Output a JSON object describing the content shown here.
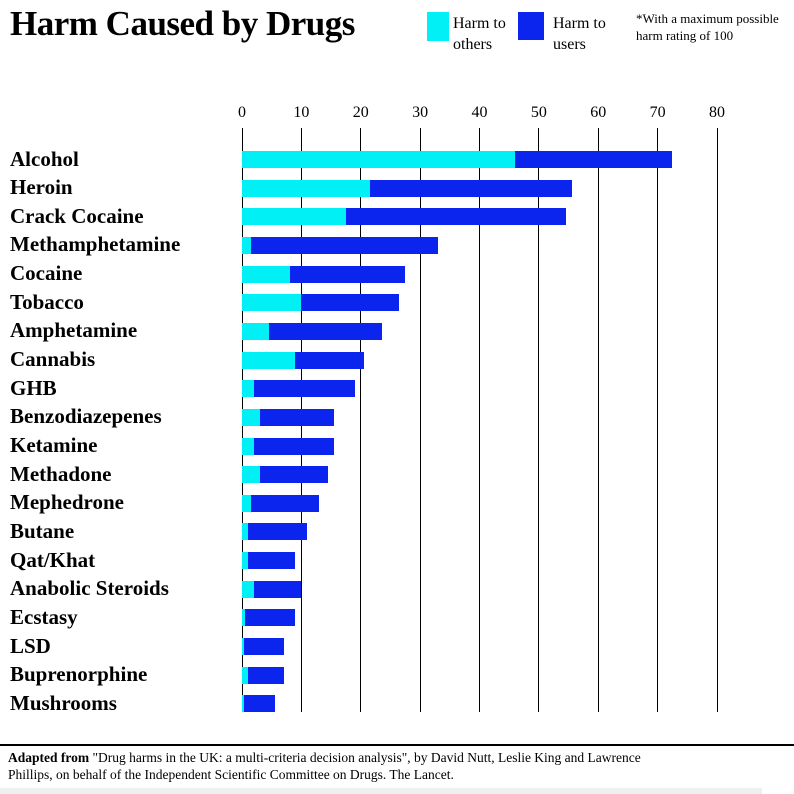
{
  "title": "Harm Caused by Drugs",
  "legend": {
    "others_label": "Harm to others",
    "users_label": "Harm to users",
    "note": "*With a maximum possible harm rating of 100"
  },
  "colors": {
    "harm_to_others": "#00f0f6",
    "harm_to_users": "#0b24ee",
    "grid": "#000000",
    "text": "#000000",
    "background": "#ffffff"
  },
  "chart_data": {
    "type": "bar",
    "orientation": "horizontal",
    "stacked": true,
    "title": "Harm Caused by Drugs",
    "note": "*With a maximum possible harm rating of 100",
    "xlabel": "",
    "ylabel": "",
    "xlim": [
      0,
      80
    ],
    "x_ticks": [
      0,
      10,
      20,
      30,
      40,
      50,
      60,
      70,
      80
    ],
    "grid": "vertical",
    "legend_position": "top",
    "categories": [
      "Alcohol",
      "Heroin",
      "Crack Cocaine",
      "Methamphetamine",
      "Cocaine",
      "Tobacco",
      "Amphetamine",
      "Cannabis",
      "GHB",
      "Benzodiazepenes",
      "Ketamine",
      "Methadone",
      "Mephedrone",
      "Butane",
      "Qat/Khat",
      "Anabolic Steroids",
      "Ecstasy",
      "LSD",
      "Buprenorphine",
      "Mushrooms"
    ],
    "series": [
      {
        "name": "Harm to others",
        "color": "#00f0f6",
        "values": [
          46,
          21.5,
          17.5,
          1.5,
          8,
          10,
          4.5,
          9,
          2,
          3,
          2,
          3,
          1.5,
          1,
          1,
          2,
          0.5,
          0.3,
          1,
          0.3
        ]
      },
      {
        "name": "Harm to users",
        "color": "#0b24ee",
        "values": [
          26.5,
          34,
          37,
          31.5,
          19.5,
          16.5,
          19,
          11.5,
          17,
          12.5,
          13.5,
          11.5,
          11.5,
          10,
          8,
          8,
          8.5,
          6.7,
          6,
          5.2
        ]
      }
    ],
    "totals": [
      72.5,
      55.5,
      54.5,
      33,
      27.5,
      26.5,
      23.5,
      20.5,
      19,
      15.5,
      15.5,
      14.5,
      13,
      11,
      9,
      10,
      9,
      7,
      7,
      5.5
    ]
  },
  "footer": {
    "prefix_bold": "Adapted from",
    "line1_rest": " \"Drug harms in the UK: a multi-criteria decision analysis\", by David Nutt, Leslie King and Lawrence",
    "line2": "Phillips, on behalf of the Independent Scientific Committee on Drugs. The Lancet."
  }
}
